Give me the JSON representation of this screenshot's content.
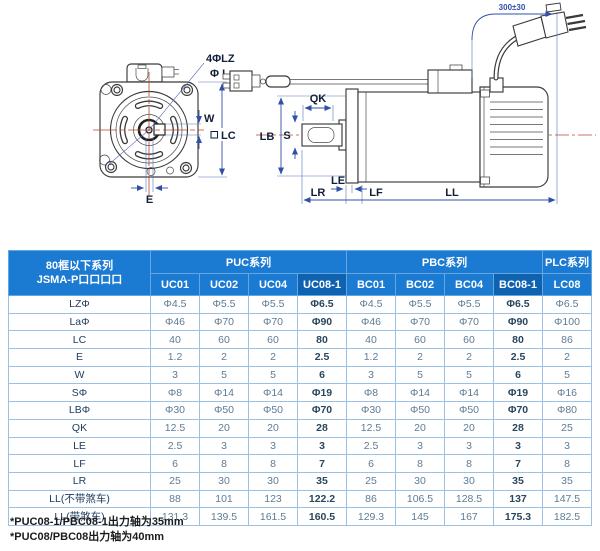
{
  "diagram": {
    "front_view": {
      "holes_label": "4ΦLZ",
      "pilot_label": "Φ La",
      "key_width_label": "W",
      "frame_label": "LC",
      "offset_label": "E"
    },
    "side_view": {
      "key_length_label": "QK",
      "shaft_label": "S",
      "pilot_label": "LB",
      "flange_thickness_label": "LE",
      "shaft_length_label": "LR",
      "boss_label": "LF",
      "body_length_label": "LL",
      "cable_length_label": "300±30"
    }
  },
  "table": {
    "header": {
      "model_label_line1": "80框以下系列",
      "model_label_line2": "JSMA-P口口口口",
      "groups": [
        {
          "label": "PUC系列",
          "span": 4
        },
        {
          "label": "PBC系列",
          "span": 4
        },
        {
          "label": "PLC系列",
          "span": 1
        }
      ],
      "models": [
        "UC01",
        "UC02",
        "UC04",
        "UC08-1",
        "BC01",
        "BC02",
        "BC04",
        "BC08-1",
        "LC08"
      ],
      "highlight_models": [
        "UC08-1",
        "BC08-1"
      ]
    },
    "rows": [
      {
        "label": "LZΦ",
        "values": [
          "Φ4.5",
          "Φ5.5",
          "Φ5.5",
          "Φ6.5",
          "Φ4.5",
          "Φ5.5",
          "Φ5.5",
          "Φ6.5",
          "Φ6.5"
        ]
      },
      {
        "label": "LaΦ",
        "values": [
          "Φ46",
          "Φ70",
          "Φ70",
          "Φ90",
          "Φ46",
          "Φ70",
          "Φ70",
          "Φ90",
          "Φ100"
        ]
      },
      {
        "label": "LC",
        "values": [
          "40",
          "60",
          "60",
          "80",
          "40",
          "60",
          "60",
          "80",
          "86"
        ]
      },
      {
        "label": "E",
        "values": [
          "1.2",
          "2",
          "2",
          "2.5",
          "1.2",
          "2",
          "2",
          "2.5",
          "2"
        ]
      },
      {
        "label": "W",
        "values": [
          "3",
          "5",
          "5",
          "6",
          "3",
          "5",
          "5",
          "6",
          "5"
        ]
      },
      {
        "label": "SΦ",
        "values": [
          "Φ8",
          "Φ14",
          "Φ14",
          "Φ19",
          "Φ8",
          "Φ14",
          "Φ14",
          "Φ19",
          "Φ16"
        ]
      },
      {
        "label": "LBΦ",
        "values": [
          "Φ30",
          "Φ50",
          "Φ50",
          "Φ70",
          "Φ30",
          "Φ50",
          "Φ50",
          "Φ70",
          "Φ80"
        ]
      },
      {
        "label": "QK",
        "values": [
          "12.5",
          "20",
          "20",
          "28",
          "12.5",
          "20",
          "20",
          "28",
          "25"
        ]
      },
      {
        "label": "LE",
        "values": [
          "2.5",
          "3",
          "3",
          "3",
          "2.5",
          "3",
          "3",
          "3",
          "3"
        ]
      },
      {
        "label": "LF",
        "values": [
          "6",
          "8",
          "8",
          "7",
          "6",
          "8",
          "8",
          "7",
          "8"
        ]
      },
      {
        "label": "LR",
        "values": [
          "25",
          "30",
          "30",
          "35",
          "25",
          "30",
          "30",
          "35",
          "35"
        ]
      },
      {
        "label": "LL(不带煞车)",
        "values": [
          "88",
          "101",
          "123",
          "122.2",
          "86",
          "106.5",
          "128.5",
          "137",
          "147.5"
        ]
      },
      {
        "label": "LL(带煞车)",
        "values": [
          "131.3",
          "139.5",
          "161.5",
          "160.5",
          "129.3",
          "145",
          "167",
          "175.3",
          "182.5"
        ]
      }
    ]
  },
  "footnotes": [
    "*PUC08-1/PBC08-1出力轴为35mm",
    "*PUC08/PBC08出力轴为40mm"
  ],
  "colors": {
    "header_blue": "#1b7ad2",
    "header_blue_dark": "#0f62b0",
    "table_border": "#9cc0e4",
    "value_text": "#5e7b95",
    "emphasis_text": "#29475f",
    "dimension_blue": "#3050a8",
    "centerline_red": "#b5452e"
  }
}
